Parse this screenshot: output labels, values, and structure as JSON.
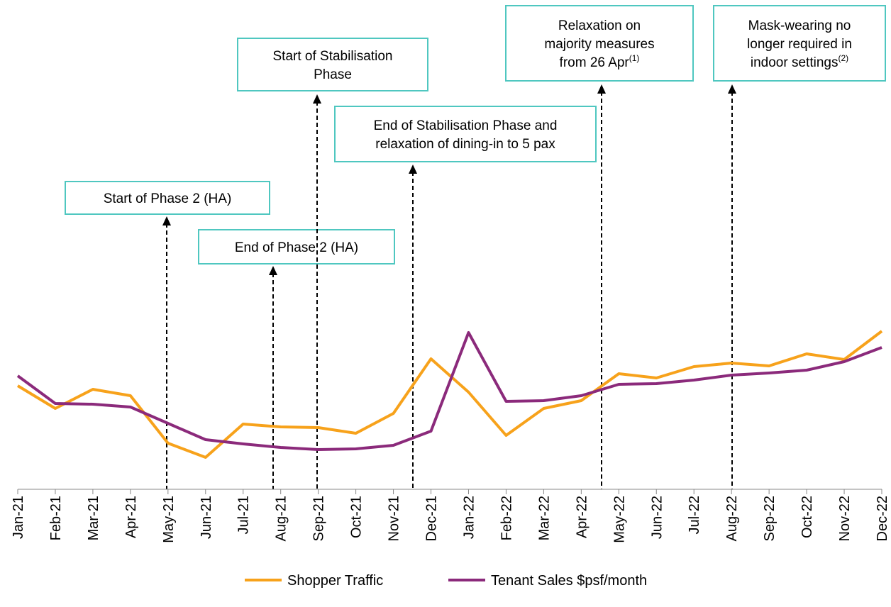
{
  "chart_data": {
    "type": "line",
    "categories": [
      "Jan-21",
      "Feb-21",
      "Mar-21",
      "Apr-21",
      "May-21",
      "Jun-21",
      "Jul-21",
      "Aug-21",
      "Sep-21",
      "Oct-21",
      "Nov-21",
      "Dec-21",
      "Jan-22",
      "Feb-22",
      "Mar-22",
      "Apr-22",
      "May-22",
      "Jun-22",
      "Jul-22",
      "Aug-22",
      "Sep-22",
      "Oct-22",
      "Nov-22",
      "Dec-22"
    ],
    "series": [
      {
        "name": "Shopper Traffic",
        "color": "#f7a21b",
        "values": [
          146,
          114,
          141,
          132,
          65,
          45,
          92,
          88,
          87,
          79,
          107,
          184,
          137,
          76,
          114,
          125,
          163,
          157,
          173,
          178,
          174,
          191,
          183,
          223
        ]
      },
      {
        "name": "Tenant Sales $psf/month",
        "color": "#8b2a7b",
        "values": [
          160,
          121,
          120,
          116,
          93,
          70,
          64,
          59,
          56,
          57,
          62,
          82,
          221,
          124,
          125,
          132,
          148,
          149,
          154,
          161,
          164,
          168,
          180,
          200
        ]
      }
    ],
    "ylim": [
      0,
      690
    ],
    "annotations": [
      {
        "lines": [
          "Start of Phase 2 (HA)"
        ]
      },
      {
        "lines": [
          "End of Phase 2 (HA)"
        ]
      },
      {
        "lines": [
          "Start of Stabilisation",
          "Phase"
        ]
      },
      {
        "lines": [
          "End of Stabilisation Phase and",
          "relaxation of dining-in to 5 pax"
        ]
      },
      {
        "lines": [
          "Relaxation on",
          "majority measures",
          "from 26 Apr"
        ],
        "note": "(1)"
      },
      {
        "lines": [
          "Mask-wearing no",
          "longer required in",
          "indoor settings"
        ],
        "note": "(2)"
      }
    ]
  }
}
